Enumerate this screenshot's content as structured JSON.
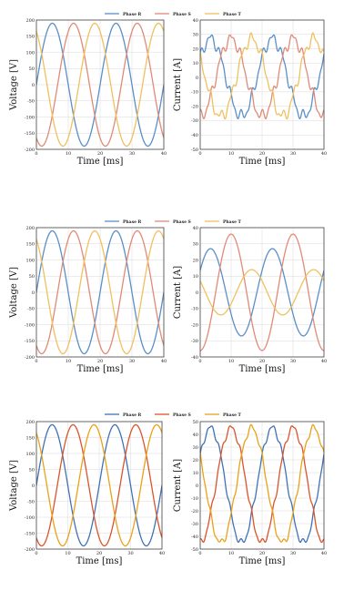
{
  "chart_data": [
    {
      "type": "line",
      "legend": {
        "placement": "top-center",
        "entries": [
          "Phase R",
          "Phase S",
          "Phase T"
        ]
      },
      "colors": {
        "R": "#5a8fc8",
        "S": "#e08a78",
        "T": "#f0c060"
      },
      "subplots": [
        {
          "ylabel": "Voltage [V]",
          "xlabel": "Time [ms]",
          "xlim": [
            0,
            40
          ],
          "ylim": [
            -200,
            200
          ],
          "xticks": [
            "0",
            "10",
            "20",
            "30",
            "40"
          ],
          "yticks": [
            "200",
            "150",
            "100",
            "50",
            "0",
            "-50",
            "-100",
            "-150",
            "-200"
          ],
          "grid": true,
          "series": [
            {
              "name": "Phase R",
              "amplitude": 190,
              "phase_deg": 0,
              "period_ms": 20
            },
            {
              "name": "Phase S",
              "amplitude": 190,
              "phase_deg": 120,
              "period_ms": 20
            },
            {
              "name": "Phase T",
              "amplitude": 190,
              "phase_deg": 240,
              "period_ms": 20
            }
          ]
        },
        {
          "ylabel": "Current [A]",
          "xlabel": "Time [ms]",
          "xlim": [
            0,
            40
          ],
          "ylim": [
            -50,
            40
          ],
          "xticks": [
            "0",
            "10",
            "20",
            "30",
            "40"
          ],
          "yticks": [
            "40",
            "30",
            "20",
            "10",
            "0",
            "-10",
            "-20",
            "-30",
            "-40",
            "-50"
          ],
          "grid": true,
          "series": [
            {
              "name": "Phase R",
              "amplitude": 27,
              "phase_deg": -30,
              "period_ms": 20,
              "ripple": 3
            },
            {
              "name": "Phase S",
              "amplitude": 27,
              "phase_deg": 90,
              "period_ms": 20,
              "ripple": 3
            },
            {
              "name": "Phase T",
              "amplitude": 27,
              "phase_deg": 210,
              "period_ms": 20,
              "ripple": 3
            }
          ]
        }
      ]
    },
    {
      "type": "line",
      "legend": {
        "placement": "top-center",
        "entries": [
          "Phase R",
          "Phase S",
          "Phase T"
        ]
      },
      "colors": {
        "R": "#5a8fc8",
        "S": "#e08a78",
        "T": "#f0c060"
      },
      "subplots": [
        {
          "ylabel": "Voltage [V]",
          "xlabel": "Time [ms]",
          "xlim": [
            0,
            40
          ],
          "ylim": [
            -200,
            200
          ],
          "xticks": [
            "0",
            "10",
            "20",
            "30",
            "40"
          ],
          "yticks": [
            "200",
            "150",
            "100",
            "50",
            "0",
            "-50",
            "-100",
            "-150",
            "-200"
          ],
          "grid": true,
          "series": [
            {
              "name": "Phase R",
              "amplitude": 190,
              "phase_deg": 0,
              "period_ms": 20
            },
            {
              "name": "Phase S",
              "amplitude": 190,
              "phase_deg": 120,
              "period_ms": 20
            },
            {
              "name": "Phase T",
              "amplitude": 190,
              "phase_deg": 240,
              "period_ms": 20
            }
          ]
        },
        {
          "ylabel": "Current [A]",
          "xlabel": "Time [ms]",
          "xlim": [
            0,
            40
          ],
          "ylim": [
            -40,
            40
          ],
          "xticks": [
            "0",
            "10",
            "20",
            "30",
            "40"
          ],
          "yticks": [
            "40",
            "30",
            "20",
            "10",
            "0",
            "-10",
            "-20",
            "-30",
            "-40"
          ],
          "grid": true,
          "series": [
            {
              "name": "Phase R",
              "amplitude": 27,
              "phase_deg": -30,
              "period_ms": 20,
              "offset": 0
            },
            {
              "name": "Phase S",
              "amplitude": 36,
              "phase_deg": 90,
              "period_ms": 20,
              "offset": 0
            },
            {
              "name": "Phase T",
              "amplitude": 14,
              "phase_deg": 210,
              "period_ms": 20,
              "offset": 0
            }
          ]
        }
      ]
    },
    {
      "type": "line",
      "legend": {
        "placement": "top-center",
        "entries": [
          "Phase R",
          "Phase S",
          "Phase T"
        ]
      },
      "colors": {
        "R": "#3f72b5",
        "S": "#d9542b",
        "T": "#e8a21a"
      },
      "subplots": [
        {
          "ylabel": "Voltage [V]",
          "xlabel": "Time [ms]",
          "xlim": [
            0,
            40
          ],
          "ylim": [
            -200,
            200
          ],
          "xticks": [
            "0",
            "10",
            "20",
            "30",
            "40"
          ],
          "yticks": [
            "200",
            "150",
            "100",
            "50",
            "0",
            "-50",
            "-100",
            "-150",
            "-200"
          ],
          "grid": true,
          "series": [
            {
              "name": "Phase R",
              "amplitude": 190,
              "phase_deg": 0,
              "period_ms": 20
            },
            {
              "name": "Phase S",
              "amplitude": 190,
              "phase_deg": 120,
              "period_ms": 20
            },
            {
              "name": "Phase T",
              "amplitude": 190,
              "phase_deg": 240,
              "period_ms": 20
            }
          ]
        },
        {
          "ylabel": "Current [A]",
          "xlabel": "Time [ms]",
          "xlim": [
            0,
            40
          ],
          "ylim": [
            -50,
            50
          ],
          "xticks": [
            "0",
            "10",
            "20",
            "30",
            "40"
          ],
          "yticks": [
            "50",
            "40",
            "30",
            "20",
            "10",
            "0",
            "-10",
            "-20",
            "-30",
            "-40",
            "-50"
          ],
          "grid": true,
          "series": [
            {
              "name": "Phase R",
              "amplitude": 45,
              "phase_deg": -30,
              "period_ms": 20,
              "ripple": 2
            },
            {
              "name": "Phase S",
              "amplitude": 45,
              "phase_deg": 90,
              "period_ms": 20,
              "ripple": 2
            },
            {
              "name": "Phase T",
              "amplitude": 45,
              "phase_deg": 210,
              "period_ms": 20,
              "ripple": 2
            }
          ]
        }
      ]
    }
  ]
}
